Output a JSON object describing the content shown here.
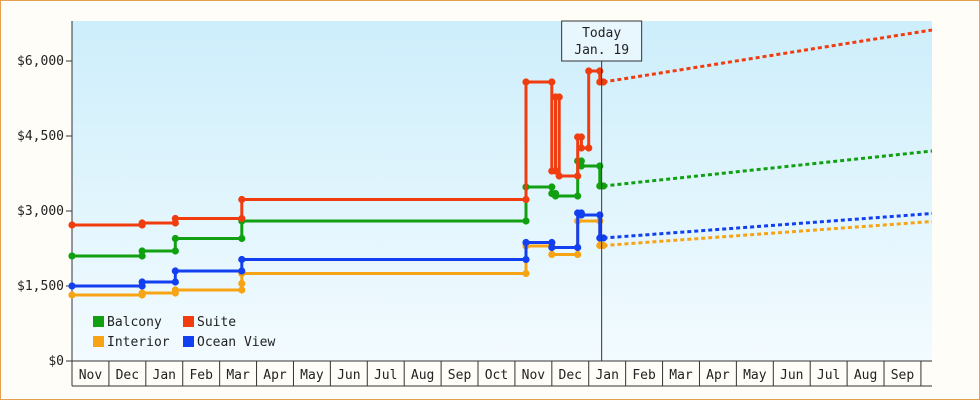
{
  "chart_data": {
    "type": "line",
    "title": "",
    "xlabel": "",
    "ylabel": "",
    "ylim": [
      0,
      6800
    ],
    "y_ticks": [
      {
        "value": 0,
        "label": "$0"
      },
      {
        "value": 1500,
        "label": "$1,500"
      },
      {
        "value": 3000,
        "label": "$3,000"
      },
      {
        "value": 4500,
        "label": "$4,500"
      },
      {
        "value": 6000,
        "label": "$6,000"
      }
    ],
    "x_range": [
      0,
      23.3
    ],
    "months": [
      "Nov",
      "Dec",
      "Jan",
      "Feb",
      "Mar",
      "Apr",
      "May",
      "Jun",
      "Jul",
      "Aug",
      "Sep",
      "Oct",
      "Nov",
      "Dec",
      "Jan",
      "Feb",
      "Mar",
      "Apr",
      "May",
      "Jun",
      "Jul",
      "Aug",
      "Sep"
    ],
    "today": {
      "x": 14.35,
      "line1": "Today",
      "line2": "Jan. 19"
    },
    "legend": {
      "placement": "bottom-left"
    },
    "series": [
      {
        "name": "Balcony",
        "color": "#11a011",
        "points": [
          [
            0,
            2100
          ],
          [
            1.9,
            2100
          ],
          [
            1.9,
            2200
          ],
          [
            2.8,
            2200
          ],
          [
            2.8,
            2450
          ],
          [
            4.6,
            2450
          ],
          [
            4.6,
            2800
          ],
          [
            12.3,
            2800
          ],
          [
            12.3,
            3480
          ],
          [
            13,
            3480
          ],
          [
            13,
            3350
          ],
          [
            13.1,
            3350
          ],
          [
            13.1,
            3300
          ],
          [
            13.7,
            3300
          ],
          [
            13.7,
            4000
          ],
          [
            13.8,
            4000
          ],
          [
            13.8,
            3900
          ],
          [
            14.3,
            3900
          ],
          [
            14.3,
            3500
          ],
          [
            14.4,
            3500
          ]
        ],
        "forecast": [
          [
            14.4,
            3500
          ],
          [
            23.3,
            4200
          ]
        ]
      },
      {
        "name": "Suite",
        "color": "#f03c0f",
        "points": [
          [
            0,
            2720
          ],
          [
            1.9,
            2720
          ],
          [
            1.9,
            2760
          ],
          [
            2.8,
            2760
          ],
          [
            2.8,
            2850
          ],
          [
            4.6,
            2850
          ],
          [
            4.6,
            3230
          ],
          [
            12.3,
            3230
          ],
          [
            12.3,
            5580
          ],
          [
            13,
            5580
          ],
          [
            13,
            3800
          ],
          [
            13.1,
            3800
          ],
          [
            13.1,
            5280
          ],
          [
            13.2,
            5280
          ],
          [
            13.2,
            3700
          ],
          [
            13.7,
            3700
          ],
          [
            13.7,
            4480
          ],
          [
            13.8,
            4480
          ],
          [
            13.8,
            4260
          ],
          [
            14,
            4260
          ],
          [
            14,
            5800
          ],
          [
            14.3,
            5800
          ],
          [
            14.3,
            5580
          ],
          [
            14.4,
            5580
          ]
        ],
        "forecast": [
          [
            14.4,
            5580
          ],
          [
            23.3,
            6620
          ]
        ]
      },
      {
        "name": "Interior",
        "color": "#f7a414",
        "points": [
          [
            0,
            1320
          ],
          [
            1.9,
            1320
          ],
          [
            1.9,
            1360
          ],
          [
            2.8,
            1360
          ],
          [
            2.8,
            1420
          ],
          [
            4.6,
            1420
          ],
          [
            4.6,
            1550
          ],
          [
            4.6,
            1750
          ],
          [
            12.3,
            1750
          ],
          [
            12.3,
            2300
          ],
          [
            13,
            2300
          ],
          [
            13,
            2130
          ],
          [
            13.7,
            2130
          ],
          [
            13.7,
            2800
          ],
          [
            14.3,
            2800
          ],
          [
            14.3,
            2310
          ],
          [
            14.4,
            2310
          ]
        ],
        "forecast": [
          [
            14.4,
            2310
          ],
          [
            23.3,
            2790
          ]
        ]
      },
      {
        "name": "Ocean View",
        "color": "#1240f0",
        "points": [
          [
            0,
            1500
          ],
          [
            1.9,
            1500
          ],
          [
            1.9,
            1580
          ],
          [
            2.8,
            1580
          ],
          [
            2.8,
            1800
          ],
          [
            4.6,
            1800
          ],
          [
            4.6,
            2030
          ],
          [
            12.3,
            2030
          ],
          [
            12.3,
            2370
          ],
          [
            13,
            2370
          ],
          [
            13,
            2270
          ],
          [
            13.7,
            2270
          ],
          [
            13.7,
            2960
          ],
          [
            13.8,
            2960
          ],
          [
            13.8,
            2920
          ],
          [
            14.3,
            2920
          ],
          [
            14.3,
            2460
          ],
          [
            14.4,
            2460
          ]
        ],
        "forecast": [
          [
            14.4,
            2460
          ],
          [
            23.3,
            2950
          ]
        ]
      }
    ]
  }
}
